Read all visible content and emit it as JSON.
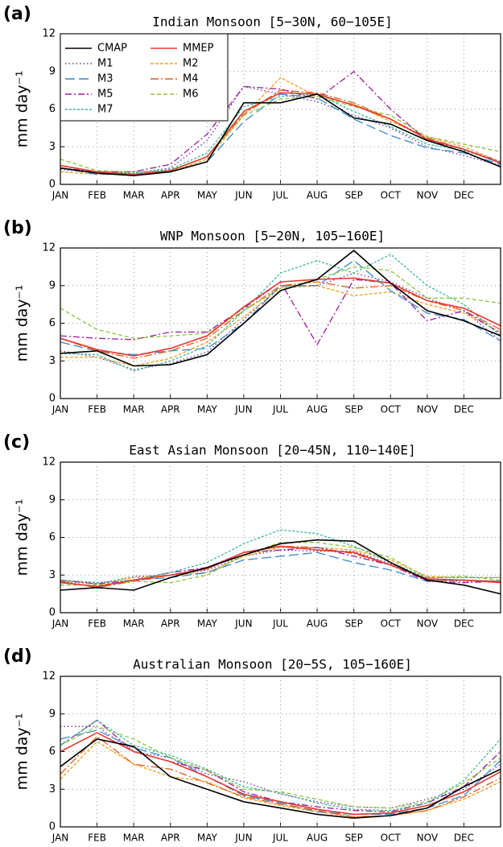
{
  "chart_data": [
    {
      "type": "line",
      "label": "(a)",
      "title": "Indian Monsoon [5−30N, 60−105E]",
      "ylabel": "mm day⁻¹",
      "x": [
        0,
        1,
        2,
        3,
        4,
        5,
        6,
        7,
        8,
        9,
        10,
        11,
        12
      ],
      "xlim": [
        0,
        12
      ],
      "xticks": [
        {
          "value": 0,
          "label": "JAN"
        },
        {
          "value": 1,
          "label": "FEB"
        },
        {
          "value": 2,
          "label": "MAR"
        },
        {
          "value": 3,
          "label": "APR"
        },
        {
          "value": 4,
          "label": "MAY"
        },
        {
          "value": 5,
          "label": "JUN"
        },
        {
          "value": 6,
          "label": "JUL"
        },
        {
          "value": 7,
          "label": "AUG"
        },
        {
          "value": 8,
          "label": "SEP"
        },
        {
          "value": 9,
          "label": "OCT"
        },
        {
          "value": 10,
          "label": "NOV"
        },
        {
          "value": 11,
          "label": "DEC"
        }
      ],
      "ylim": [
        0,
        12
      ],
      "yticks": [
        0,
        3,
        6,
        9,
        12
      ],
      "grid": true,
      "legend": "upper left",
      "series": [
        {
          "name": "CMAP",
          "color": "#000000",
          "dash": "",
          "values": [
            1.3,
            0.9,
            0.7,
            1.0,
            1.8,
            6.5,
            6.5,
            7.2,
            5.3,
            4.8,
            3.5,
            2.6,
            1.4
          ]
        },
        {
          "name": "MMEP",
          "color": "#e8382b",
          "dash": "",
          "values": [
            1.5,
            1.0,
            0.8,
            1.1,
            2.2,
            5.8,
            7.3,
            7.2,
            6.3,
            5.2,
            3.6,
            2.8,
            1.7
          ]
        },
        {
          "name": "M1",
          "color": "#6b2fa0",
          "dash": "1.5,3",
          "values": [
            1.2,
            0.9,
            0.9,
            1.3,
            3.5,
            7.8,
            7.2,
            6.6,
            5.5,
            4.5,
            3.0,
            2.3,
            1.5
          ]
        },
        {
          "name": "M2",
          "color": "#f0a020",
          "dash": "4,2",
          "values": [
            1.0,
            0.8,
            0.8,
            1.0,
            2.0,
            5.5,
            8.5,
            7.0,
            6.4,
            5.0,
            3.8,
            3.0,
            1.8
          ]
        },
        {
          "name": "M3",
          "color": "#3a88c8",
          "dash": "12,5",
          "values": [
            1.3,
            0.8,
            0.8,
            1.0,
            1.8,
            5.0,
            7.2,
            6.9,
            5.2,
            3.9,
            2.9,
            2.5,
            1.6
          ]
        },
        {
          "name": "M4",
          "color": "#e06020",
          "dash": "10,3,2,3",
          "values": [
            1.5,
            1.0,
            0.8,
            1.1,
            2.2,
            5.6,
            7.5,
            7.3,
            6.5,
            5.2,
            3.7,
            2.8,
            1.7
          ]
        },
        {
          "name": "M5",
          "color": "#9a1aa0",
          "dash": "8,3,2,3",
          "values": [
            1.3,
            1.0,
            1.0,
            1.6,
            4.0,
            7.8,
            7.6,
            6.8,
            9.0,
            6.0,
            3.5,
            2.8,
            1.8
          ]
        },
        {
          "name": "M6",
          "color": "#8cc63c",
          "dash": "5,3",
          "values": [
            2.0,
            1.1,
            1.0,
            1.1,
            2.2,
            5.5,
            6.8,
            7.0,
            6.2,
            5.5,
            3.8,
            3.2,
            2.6
          ]
        },
        {
          "name": "M7",
          "color": "#3ab89a",
          "dash": "3,2",
          "values": [
            1.5,
            1.0,
            0.9,
            1.2,
            2.5,
            6.2,
            7.0,
            7.2,
            5.8,
            4.6,
            3.2,
            2.7,
            1.8
          ]
        }
      ]
    },
    {
      "type": "line",
      "label": "(b)",
      "title": "WNP Monsoon [5−20N, 105−160E]",
      "ylabel": "mm day⁻¹",
      "x": [
        0,
        1,
        2,
        3,
        4,
        5,
        6,
        7,
        8,
        9,
        10,
        11,
        12
      ],
      "xlim": [
        0,
        12
      ],
      "xticks": [
        {
          "value": 0,
          "label": "JAN"
        },
        {
          "value": 1,
          "label": "FEB"
        },
        {
          "value": 2,
          "label": "MAR"
        },
        {
          "value": 3,
          "label": "APR"
        },
        {
          "value": 4,
          "label": "MAY"
        },
        {
          "value": 5,
          "label": "JUN"
        },
        {
          "value": 6,
          "label": "JUL"
        },
        {
          "value": 7,
          "label": "AUG"
        },
        {
          "value": 8,
          "label": "SEP"
        },
        {
          "value": 9,
          "label": "OCT"
        },
        {
          "value": 10,
          "label": "NOV"
        },
        {
          "value": 11,
          "label": "DEC"
        }
      ],
      "ylim": [
        0,
        12
      ],
      "yticks": [
        0,
        3,
        6,
        9,
        12
      ],
      "grid": true,
      "series": [
        {
          "name": "CMAP",
          "color": "#000000",
          "dash": "",
          "values": [
            3.6,
            3.8,
            2.6,
            2.7,
            3.5,
            6.0,
            8.6,
            9.5,
            11.8,
            9.2,
            7.0,
            6.2,
            5.0
          ]
        },
        {
          "name": "MMEP",
          "color": "#e8382b",
          "dash": "",
          "values": [
            4.8,
            3.9,
            3.4,
            4.0,
            5.0,
            7.3,
            9.3,
            9.5,
            9.6,
            9.2,
            7.8,
            7.2,
            5.8
          ]
        },
        {
          "name": "M1",
          "color": "#6b2fa0",
          "dash": "1.5,3",
          "values": [
            3.8,
            3.3,
            2.3,
            2.8,
            3.7,
            6.3,
            9.0,
            9.0,
            10.0,
            9.3,
            8.0,
            7.0,
            4.6
          ]
        },
        {
          "name": "M2",
          "color": "#f0a020",
          "dash": "4,2",
          "values": [
            3.3,
            3.3,
            2.6,
            3.2,
            4.5,
            6.5,
            8.8,
            9.0,
            8.2,
            8.5,
            7.5,
            6.8,
            5.3
          ]
        },
        {
          "name": "M3",
          "color": "#3a88c8",
          "dash": "12,5",
          "values": [
            4.5,
            3.8,
            3.5,
            3.8,
            4.0,
            6.0,
            9.0,
            9.0,
            11.0,
            8.6,
            6.8,
            6.3,
            4.6
          ]
        },
        {
          "name": "M4",
          "color": "#e06020",
          "dash": "10,3,2,3",
          "values": [
            4.8,
            3.8,
            3.2,
            3.8,
            4.8,
            7.0,
            9.0,
            9.3,
            8.8,
            9.0,
            7.8,
            7.0,
            5.5
          ]
        },
        {
          "name": "M5",
          "color": "#9a1aa0",
          "dash": "8,3,2,3",
          "values": [
            5.0,
            4.8,
            4.7,
            5.3,
            5.3,
            7.2,
            9.3,
            4.3,
            9.5,
            9.2,
            6.2,
            7.0,
            5.2
          ]
        },
        {
          "name": "M6",
          "color": "#8cc63c",
          "dash": "5,3",
          "values": [
            7.2,
            5.5,
            4.8,
            5.0,
            5.2,
            7.0,
            8.8,
            9.5,
            10.5,
            10.2,
            8.0,
            8.0,
            7.6
          ]
        },
        {
          "name": "M7",
          "color": "#3ab89a",
          "dash": "3,2",
          "values": [
            3.6,
            3.5,
            2.2,
            3.0,
            4.2,
            7.0,
            10.0,
            11.0,
            10.0,
            11.5,
            9.0,
            7.5,
            5.0
          ]
        }
      ]
    },
    {
      "type": "line",
      "label": "(c)",
      "title": "East Asian Monsoon [20−45N, 110−140E]",
      "ylabel": "mm day⁻¹",
      "x": [
        0,
        1,
        2,
        3,
        4,
        5,
        6,
        7,
        8,
        9,
        10,
        11,
        12
      ],
      "xlim": [
        0,
        12
      ],
      "xticks": [
        {
          "value": 0,
          "label": "JAN"
        },
        {
          "value": 1,
          "label": "FEB"
        },
        {
          "value": 2,
          "label": "MAR"
        },
        {
          "value": 3,
          "label": "APR"
        },
        {
          "value": 4,
          "label": "MAY"
        },
        {
          "value": 5,
          "label": "JUN"
        },
        {
          "value": 6,
          "label": "JUL"
        },
        {
          "value": 7,
          "label": "AUG"
        },
        {
          "value": 8,
          "label": "SEP"
        },
        {
          "value": 9,
          "label": "OCT"
        },
        {
          "value": 10,
          "label": "NOV"
        },
        {
          "value": 11,
          "label": "DEC"
        }
      ],
      "ylim": [
        0,
        12
      ],
      "yticks": [
        0,
        3,
        6,
        9,
        12
      ],
      "grid": true,
      "series": [
        {
          "name": "CMAP",
          "color": "#000000",
          "dash": "",
          "values": [
            1.8,
            2.0,
            1.8,
            2.8,
            3.6,
            4.6,
            5.5,
            5.8,
            5.7,
            4.0,
            2.6,
            2.2,
            1.5
          ]
        },
        {
          "name": "MMEP",
          "color": "#e8382b",
          "dash": "",
          "values": [
            2.4,
            2.1,
            2.6,
            3.0,
            3.5,
            4.8,
            5.3,
            5.0,
            4.8,
            3.8,
            2.7,
            2.6,
            2.4
          ]
        },
        {
          "name": "M1",
          "color": "#6b2fa0",
          "dash": "1.5,3",
          "values": [
            2.5,
            2.3,
            2.9,
            3.0,
            3.4,
            4.5,
            5.0,
            4.9,
            4.9,
            3.9,
            2.6,
            2.5,
            2.5
          ]
        },
        {
          "name": "M2",
          "color": "#f0a020",
          "dash": "4,2",
          "values": [
            2.6,
            2.3,
            2.8,
            3.0,
            3.2,
            4.5,
            5.2,
            5.2,
            5.0,
            4.2,
            2.9,
            2.8,
            2.8
          ]
        },
        {
          "name": "M3",
          "color": "#3a88c8",
          "dash": "12,5",
          "values": [
            2.5,
            2.0,
            2.6,
            2.8,
            3.2,
            4.2,
            4.5,
            4.8,
            4.0,
            3.4,
            2.5,
            2.6,
            2.5
          ]
        },
        {
          "name": "M4",
          "color": "#e06020",
          "dash": "10,3,2,3",
          "values": [
            2.5,
            2.0,
            2.5,
            3.0,
            3.6,
            4.8,
            5.3,
            5.2,
            4.7,
            3.8,
            2.6,
            2.6,
            2.5
          ]
        },
        {
          "name": "M5",
          "color": "#9a1aa0",
          "dash": "8,3,2,3",
          "values": [
            2.6,
            2.3,
            2.6,
            3.2,
            3.6,
            4.8,
            5.0,
            5.2,
            4.5,
            3.8,
            2.5,
            2.4,
            2.5
          ]
        },
        {
          "name": "M6",
          "color": "#8cc63c",
          "dash": "5,3",
          "values": [
            2.2,
            2.2,
            2.5,
            2.4,
            3.0,
            4.6,
            5.6,
            5.6,
            5.2,
            4.4,
            2.8,
            2.9,
            2.6
          ]
        },
        {
          "name": "M7",
          "color": "#3ab89a",
          "dash": "3,2",
          "values": [
            2.6,
            2.4,
            2.6,
            3.2,
            4.0,
            5.5,
            6.6,
            6.3,
            5.3,
            4.0,
            2.8,
            2.8,
            2.8
          ]
        }
      ]
    },
    {
      "type": "line",
      "label": "(d)",
      "title": "Australian Monsoon [20−5S, 105−160E]",
      "ylabel": "mm day⁻¹",
      "x": [
        0,
        1,
        2,
        3,
        4,
        5,
        6,
        7,
        8,
        9,
        10,
        11,
        12
      ],
      "xlim": [
        0,
        12
      ],
      "xticks": [
        {
          "value": 0,
          "label": "JAN"
        },
        {
          "value": 1,
          "label": "FEB"
        },
        {
          "value": 2,
          "label": "MAR"
        },
        {
          "value": 3,
          "label": "APR"
        },
        {
          "value": 4,
          "label": "MAY"
        },
        {
          "value": 5,
          "label": "JUN"
        },
        {
          "value": 6,
          "label": "JUL"
        },
        {
          "value": 7,
          "label": "AUG"
        },
        {
          "value": 8,
          "label": "SEP"
        },
        {
          "value": 9,
          "label": "OCT"
        },
        {
          "value": 10,
          "label": "NOV"
        },
        {
          "value": 11,
          "label": "DEC"
        }
      ],
      "ylim": [
        0,
        12
      ],
      "yticks": [
        0,
        3,
        6,
        9,
        12
      ],
      "grid": true,
      "series": [
        {
          "name": "CMAP",
          "color": "#000000",
          "dash": "",
          "values": [
            4.8,
            7.0,
            6.4,
            4.0,
            3.0,
            2.0,
            1.5,
            1.0,
            0.7,
            0.9,
            1.5,
            3.2,
            4.6
          ]
        },
        {
          "name": "MMEP",
          "color": "#e8382b",
          "dash": "",
          "values": [
            6.0,
            7.5,
            6.0,
            5.2,
            4.0,
            2.6,
            2.0,
            1.4,
            1.0,
            1.1,
            1.7,
            2.8,
            4.4
          ]
        },
        {
          "name": "M1",
          "color": "#6b2fa0",
          "dash": "1.5,3",
          "values": [
            8.0,
            8.0,
            6.0,
            5.5,
            4.2,
            3.6,
            2.6,
            2.0,
            1.6,
            1.5,
            2.2,
            3.0,
            5.0
          ]
        },
        {
          "name": "M2",
          "color": "#f0a020",
          "dash": "4,2",
          "values": [
            3.8,
            6.8,
            5.0,
            4.0,
            3.6,
            2.3,
            1.7,
            1.2,
            0.8,
            0.9,
            1.3,
            2.2,
            3.6
          ]
        },
        {
          "name": "M3",
          "color": "#3a88c8",
          "dash": "12,5",
          "values": [
            7.0,
            7.7,
            6.3,
            5.5,
            4.0,
            2.5,
            1.9,
            1.2,
            1.0,
            1.0,
            1.5,
            2.5,
            5.3
          ]
        },
        {
          "name": "M4",
          "color": "#e06020",
          "dash": "10,3,2,3",
          "values": [
            4.2,
            7.2,
            5.0,
            4.6,
            3.5,
            2.4,
            1.8,
            1.3,
            0.8,
            0.9,
            1.3,
            2.4,
            3.9
          ]
        },
        {
          "name": "M5",
          "color": "#9a1aa0",
          "dash": "8,3,2,3",
          "values": [
            6.5,
            8.5,
            6.0,
            5.2,
            4.5,
            2.8,
            2.0,
            1.6,
            1.3,
            1.2,
            1.9,
            3.2,
            6.0
          ]
        },
        {
          "name": "M6",
          "color": "#8cc63c",
          "dash": "5,3",
          "values": [
            6.5,
            8.0,
            7.0,
            5.5,
            4.5,
            3.0,
            2.8,
            2.2,
            1.6,
            1.5,
            2.0,
            3.5,
            5.5
          ]
        },
        {
          "name": "M7",
          "color": "#3ab89a",
          "dash": "3,2",
          "values": [
            6.5,
            8.5,
            6.5,
            5.7,
            4.6,
            3.2,
            2.7,
            1.9,
            1.4,
            1.3,
            1.9,
            3.7,
            7.0
          ]
        }
      ]
    }
  ]
}
